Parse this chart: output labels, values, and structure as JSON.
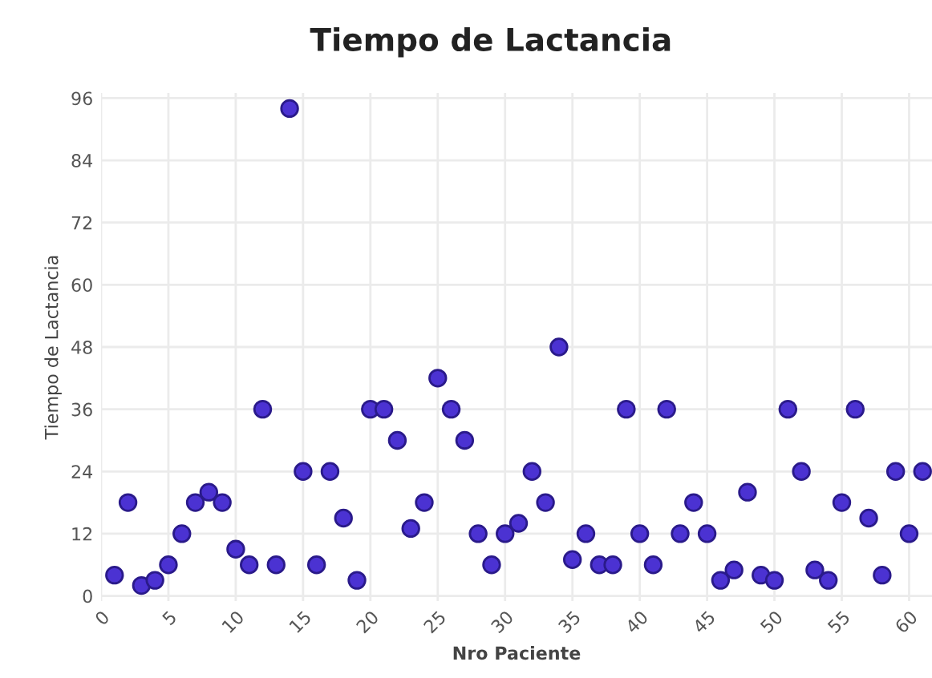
{
  "chart_data": {
    "type": "scatter",
    "title": "Tiempo de Lactancia",
    "xlabel": "Nro Paciente",
    "ylabel": "Tiempo de Lactancia",
    "x": [
      1,
      2,
      3,
      4,
      5,
      6,
      7,
      8,
      9,
      10,
      11,
      12,
      13,
      14,
      15,
      16,
      17,
      18,
      19,
      20,
      21,
      22,
      23,
      24,
      25,
      26,
      27,
      28,
      29,
      30,
      31,
      32,
      33,
      34,
      35,
      36,
      37,
      38,
      39,
      40,
      41,
      42,
      43,
      44,
      45,
      46,
      47,
      48,
      49,
      50,
      51,
      52,
      53,
      54,
      55,
      56,
      57,
      58,
      59,
      60,
      61
    ],
    "series": [
      {
        "color": "#4b32d2",
        "values": [
          4,
          18,
          2,
          3,
          6,
          12,
          18,
          20,
          18,
          9,
          6,
          36,
          6,
          94,
          24,
          6,
          24,
          15,
          3,
          36,
          36,
          30,
          13,
          18,
          42,
          36,
          30,
          12,
          6,
          12,
          14,
          24,
          18,
          48,
          7,
          12,
          6,
          6,
          36,
          12,
          6,
          36,
          12,
          18,
          12,
          3,
          5,
          20,
          4,
          3,
          36,
          24,
          5,
          3,
          18,
          36,
          15,
          4,
          24,
          12,
          24
        ]
      }
    ],
    "xlim": [
      0,
      61.7
    ],
    "xticks": [
      0,
      5,
      10,
      15,
      20,
      25,
      30,
      35,
      40,
      45,
      50,
      55,
      60
    ],
    "ylim": [
      -1,
      97
    ],
    "yticks": [
      0,
      12,
      24,
      36,
      48,
      60,
      72,
      84,
      96
    ],
    "grid": true,
    "marker": "circle"
  }
}
